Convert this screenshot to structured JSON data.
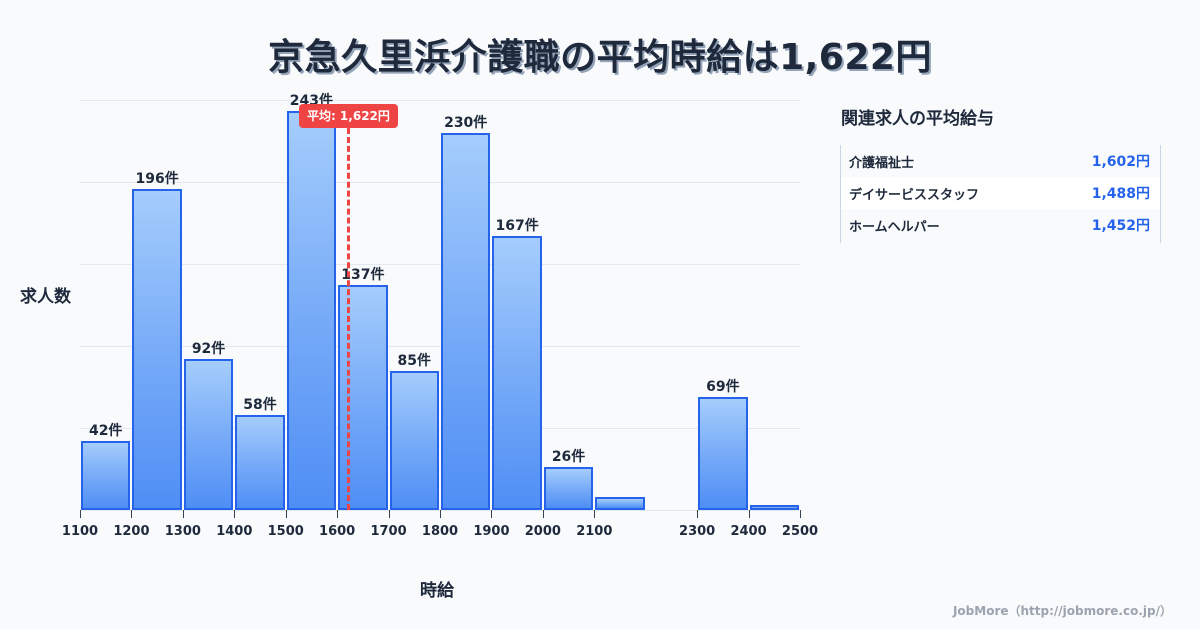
{
  "title": "京急久里浜介護職の平均時給は1,622円",
  "average_badge": "平均: 1,622円",
  "axis": {
    "ylabel": "求人数",
    "xlabel": "時給"
  },
  "sidebar": {
    "title": "関連求人の平均給与",
    "rows": [
      {
        "name": "介護福祉士",
        "value": "1,602円"
      },
      {
        "name": "デイサービススタッフ",
        "value": "1,488円"
      },
      {
        "name": "ホームヘルパー",
        "value": "1,452円"
      }
    ]
  },
  "footer": "JobMore（http://jobmore.co.jp/）",
  "colors": {
    "bar_fill_top": "#a5cdfc",
    "bar_fill_bottom": "#4f8ef5",
    "bar_border": "#2563eb",
    "average_line": "#ef4444",
    "side_value": "#2563eb",
    "text": "#1e293b"
  },
  "chart_data": {
    "type": "bar",
    "title": "京急久里浜介護職の平均時給は1,622円",
    "xlabel": "時給",
    "ylabel": "求人数",
    "x_ticks": [
      "1100",
      "1200",
      "1300",
      "1400",
      "1500",
      "1600",
      "1700",
      "1800",
      "1900",
      "2000",
      "2100",
      "2300",
      "2400",
      "2500"
    ],
    "bins": [
      {
        "start": 1100,
        "end": 1200,
        "count": 42,
        "label": "42件"
      },
      {
        "start": 1200,
        "end": 1300,
        "count": 196,
        "label": "196件"
      },
      {
        "start": 1300,
        "end": 1400,
        "count": 92,
        "label": "92件"
      },
      {
        "start": 1400,
        "end": 1500,
        "count": 58,
        "label": "58件"
      },
      {
        "start": 1500,
        "end": 1600,
        "count": 243,
        "label": "243件"
      },
      {
        "start": 1600,
        "end": 1700,
        "count": 137,
        "label": "137件"
      },
      {
        "start": 1700,
        "end": 1800,
        "count": 85,
        "label": "85件"
      },
      {
        "start": 1800,
        "end": 1900,
        "count": 230,
        "label": "230件"
      },
      {
        "start": 1900,
        "end": 2000,
        "count": 167,
        "label": "167件"
      },
      {
        "start": 2000,
        "end": 2100,
        "count": 26,
        "label": "26件"
      },
      {
        "start": 2100,
        "end": 2200,
        "count": 8,
        "label": ""
      },
      {
        "start": 2200,
        "end": 2300,
        "count": 0,
        "label": ""
      },
      {
        "start": 2300,
        "end": 2400,
        "count": 69,
        "label": "69件"
      },
      {
        "start": 2400,
        "end": 2500,
        "count": 3,
        "label": ""
      }
    ],
    "categories": [
      "1100-1200",
      "1200-1300",
      "1300-1400",
      "1400-1500",
      "1500-1600",
      "1600-1700",
      "1700-1800",
      "1800-1900",
      "1900-2000",
      "2000-2100",
      "2100-2200",
      "2200-2300",
      "2300-2400",
      "2400-2500"
    ],
    "values": [
      42,
      196,
      92,
      58,
      243,
      137,
      85,
      230,
      167,
      26,
      8,
      0,
      69,
      3
    ],
    "annotations": [
      {
        "type": "vline",
        "x": 1622,
        "label": "平均: 1,622円",
        "style": "dashed",
        "color": "#ef4444"
      }
    ],
    "xlim": [
      1100,
      2500
    ],
    "ylim": [
      0,
      250
    ],
    "grid": true,
    "legend": null
  }
}
